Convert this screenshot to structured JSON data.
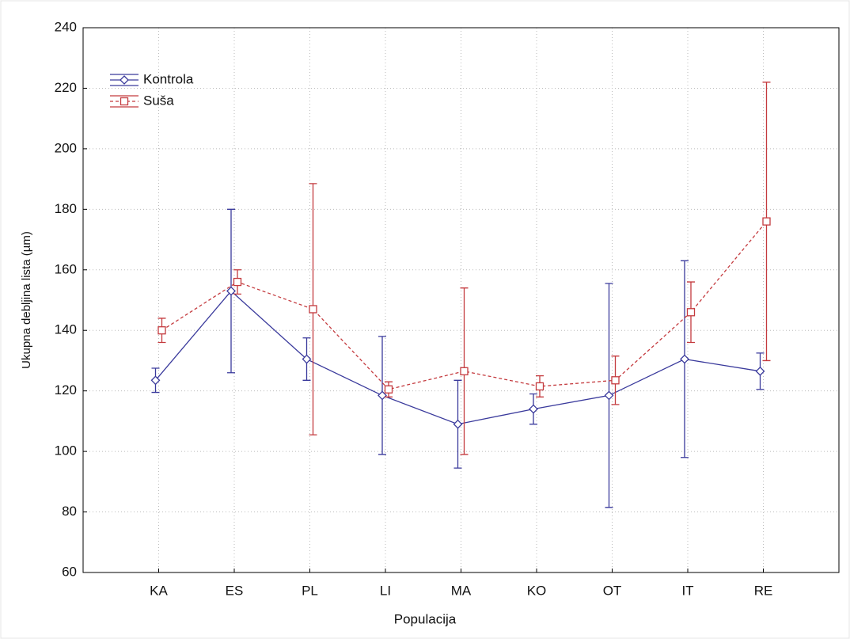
{
  "chart_data": {
    "type": "line",
    "xlabel": "Populacija",
    "ylabel": "Ukupna debljina lista (µm)",
    "categories": [
      "KA",
      "ES",
      "PL",
      "LI",
      "MA",
      "KO",
      "OT",
      "IT",
      "RE"
    ],
    "series": [
      {
        "name": "Kontrola",
        "color": "#3a3a9c",
        "marker": "diamond",
        "dashed": false,
        "values": [
          123.5,
          153,
          130.5,
          118.5,
          109,
          114,
          118.5,
          130.5,
          126.5
        ],
        "errors": [
          4,
          27,
          7,
          19.5,
          14.5,
          5,
          37,
          32.5,
          6
        ]
      },
      {
        "name": "Suša",
        "color": "#c43a3e",
        "marker": "square",
        "dashed": true,
        "values": [
          140,
          156,
          147,
          120.5,
          126.5,
          121.5,
          123.5,
          146,
          176
        ],
        "errors": [
          4,
          4,
          41.5,
          2.5,
          27.5,
          3.5,
          8,
          10,
          46
        ]
      }
    ],
    "ylim": [
      60,
      240
    ],
    "yticks": [
      60,
      80,
      100,
      120,
      140,
      160,
      180,
      200,
      220,
      240
    ],
    "grid": true,
    "legend": "upper left"
  }
}
